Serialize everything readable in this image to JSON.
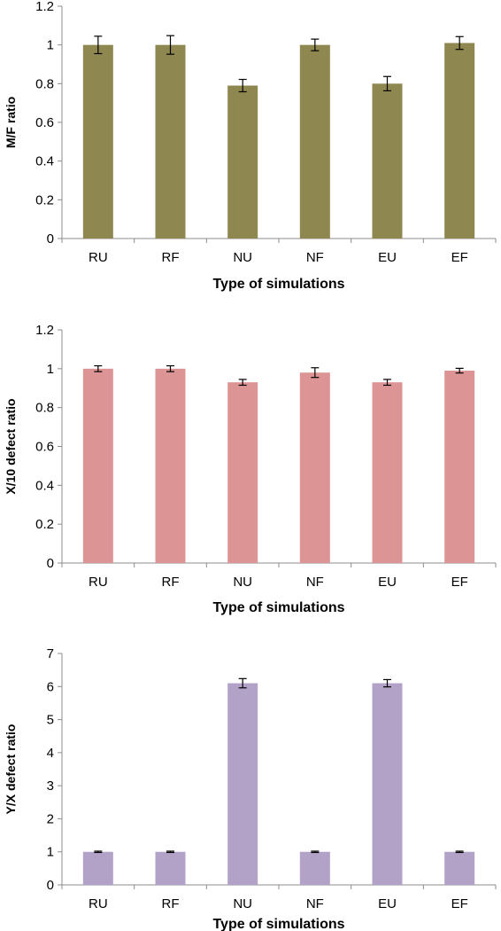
{
  "chart_data": [
    {
      "type": "bar",
      "categories": [
        "RU",
        "RF",
        "NU",
        "NF",
        "EU",
        "EF"
      ],
      "values": [
        1.0,
        1.0,
        0.79,
        1.0,
        0.8,
        1.01
      ],
      "errors": [
        0.045,
        0.048,
        0.032,
        0.03,
        0.037,
        0.033
      ],
      "xlabel": "Type of simulations",
      "ylabel": "M/F ratio",
      "ylim": [
        0,
        1.2
      ],
      "yticks": [
        "0",
        "0.2",
        "0.4",
        "0.6",
        "0.8",
        "1",
        "1.2"
      ],
      "grid": false,
      "color": "#8f8750"
    },
    {
      "type": "bar",
      "categories": [
        "RU",
        "RF",
        "NU",
        "NF",
        "EU",
        "EF"
      ],
      "values": [
        1.0,
        1.0,
        0.93,
        0.98,
        0.93,
        0.99
      ],
      "errors": [
        0.015,
        0.015,
        0.015,
        0.025,
        0.015,
        0.012
      ],
      "xlabel": "Type of simulations",
      "ylabel": "X/10 defect ratio",
      "ylim": [
        0,
        1.2
      ],
      "yticks": [
        "0",
        "0.2",
        "0.4",
        "0.6",
        "0.8",
        "1",
        "1.2"
      ],
      "grid": false,
      "color": "#dc9494"
    },
    {
      "type": "bar",
      "categories": [
        "RU",
        "RF",
        "NU",
        "NF",
        "EU",
        "EF"
      ],
      "values": [
        1.0,
        1.0,
        6.1,
        1.0,
        6.1,
        1.0
      ],
      "errors": [
        0.02,
        0.02,
        0.14,
        0.02,
        0.11,
        0.02
      ],
      "xlabel": "Type of simulations",
      "ylabel": "Y/X defect ratio",
      "ylim": [
        0,
        7
      ],
      "yticks": [
        "0",
        "1",
        "2",
        "3",
        "4",
        "5",
        "6",
        "7"
      ],
      "grid": false,
      "color": "#b2a2c8"
    }
  ]
}
